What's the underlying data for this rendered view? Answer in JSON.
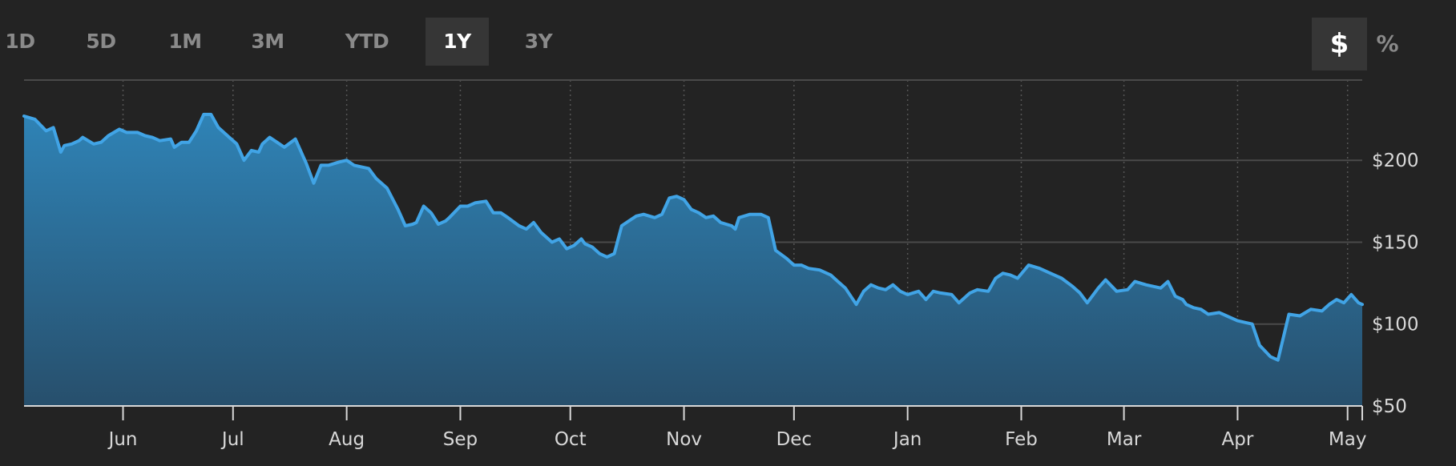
{
  "range_tabs": [
    {
      "label": "1D",
      "active": false
    },
    {
      "label": "5D",
      "active": false
    },
    {
      "label": "1M",
      "active": false
    },
    {
      "label": "3M",
      "active": false
    },
    {
      "label": "YTD",
      "active": false
    },
    {
      "label": "1Y",
      "active": true
    },
    {
      "label": "3Y",
      "active": false
    }
  ],
  "unit_toggle": {
    "dollar_label": "$",
    "percent_label": "%",
    "selected": "dollar"
  },
  "colors": {
    "background": "#232323",
    "line": "#41a4e6",
    "fill_top": "#2f83b6",
    "fill_bottom": "#274f6c",
    "grid": "#4a4a4a",
    "axis": "#d8d8d8"
  },
  "chart_data": {
    "type": "area",
    "title": "",
    "xlabel": "",
    "ylabel": "",
    "y_tick_labels": [
      "$50",
      "$100",
      "$150",
      "$200"
    ],
    "y_ticks": [
      50,
      100,
      150,
      200
    ],
    "ylim": [
      50,
      249
    ],
    "x_tick_labels": [
      {
        "label": "Jun",
        "date": "2022-06-01"
      },
      {
        "label": "Jul",
        "date": "2022-07-01"
      },
      {
        "label": "Aug",
        "date": "2022-08-01"
      },
      {
        "label": "Sep",
        "date": "2022-09-01"
      },
      {
        "label": "Oct",
        "date": "2022-10-01"
      },
      {
        "label": "Nov",
        "date": "2022-11-01"
      },
      {
        "label": "Dec",
        "date": "2022-12-01"
      },
      {
        "label": "Jan",
        "date": "2023-01-01"
      },
      {
        "label": "Feb",
        "date": "2023-02-01"
      },
      {
        "label": "Mar",
        "date": "2023-03-01"
      },
      {
        "label": "Apr",
        "date": "2023-04-01"
      },
      {
        "label": "May",
        "date": "2023-05-01"
      }
    ],
    "xlim": [
      "2022-05-05",
      "2023-05-05"
    ],
    "grid": true,
    "series": [
      {
        "x": [
          "2022-05-05",
          "2022-05-08",
          "2022-05-11",
          "2022-05-13",
          "2022-05-15",
          "2022-05-16",
          "2022-05-18",
          "2022-05-20",
          "2022-05-21",
          "2022-05-24",
          "2022-05-26",
          "2022-05-27",
          "2022-05-28",
          "2022-05-31",
          "2022-06-02",
          "2022-06-05",
          "2022-06-07",
          "2022-06-09",
          "2022-06-11",
          "2022-06-14",
          "2022-06-15",
          "2022-06-17",
          "2022-06-19",
          "2022-06-21",
          "2022-06-23",
          "2022-06-25",
          "2022-06-27",
          "2022-06-30",
          "2022-07-02",
          "2022-07-04",
          "2022-07-06",
          "2022-07-08",
          "2022-07-09",
          "2022-07-11",
          "2022-07-13",
          "2022-07-15",
          "2022-07-18",
          "2022-07-21",
          "2022-07-23",
          "2022-07-25",
          "2022-07-27",
          "2022-07-30",
          "2022-08-01",
          "2022-08-03",
          "2022-08-05",
          "2022-08-07",
          "2022-08-09",
          "2022-08-12",
          "2022-08-15",
          "2022-08-17",
          "2022-08-19",
          "2022-08-20",
          "2022-08-22",
          "2022-08-24",
          "2022-08-26",
          "2022-08-28",
          "2022-08-29",
          "2022-09-01",
          "2022-09-03",
          "2022-09-05",
          "2022-09-08",
          "2022-09-10",
          "2022-09-12",
          "2022-09-14",
          "2022-09-17",
          "2022-09-19",
          "2022-09-21",
          "2022-09-23",
          "2022-09-26",
          "2022-09-28",
          "2022-09-30",
          "2022-10-02",
          "2022-10-04",
          "2022-10-05",
          "2022-10-07",
          "2022-10-09",
          "2022-10-11",
          "2022-10-13",
          "2022-10-15",
          "2022-10-17",
          "2022-10-19",
          "2022-10-21",
          "2022-10-24",
          "2022-10-26",
          "2022-10-28",
          "2022-10-30",
          "2022-11-01",
          "2022-11-03",
          "2022-11-05",
          "2022-11-07",
          "2022-11-09",
          "2022-11-11",
          "2022-11-14",
          "2022-11-15",
          "2022-11-16",
          "2022-11-19",
          "2022-11-22",
          "2022-11-24",
          "2022-11-26",
          "2022-11-29",
          "2022-12-01",
          "2022-12-03",
          "2022-12-05",
          "2022-12-08",
          "2022-12-11",
          "2022-12-13",
          "2022-12-15",
          "2022-12-18",
          "2022-12-20",
          "2022-12-22",
          "2022-12-24",
          "2022-12-26",
          "2022-12-28",
          "2022-12-30",
          "2023-01-01",
          "2023-01-04",
          "2023-01-06",
          "2023-01-08",
          "2023-01-10",
          "2023-01-13",
          "2023-01-15",
          "2023-01-18",
          "2023-01-20",
          "2023-01-23",
          "2023-01-25",
          "2023-01-27",
          "2023-01-29",
          "2023-01-31",
          "2023-02-03",
          "2023-02-06",
          "2023-02-08",
          "2023-02-10",
          "2023-02-12",
          "2023-02-15",
          "2023-02-17",
          "2023-02-19",
          "2023-02-22",
          "2023-02-24",
          "2023-02-27",
          "2023-03-02",
          "2023-03-04",
          "2023-03-07",
          "2023-03-09",
          "2023-03-11",
          "2023-03-13",
          "2023-03-15",
          "2023-03-17",
          "2023-03-18",
          "2023-03-20",
          "2023-03-22",
          "2023-03-24",
          "2023-03-27",
          "2023-03-29",
          "2023-04-01",
          "2023-04-03",
          "2023-04-05",
          "2023-04-07",
          "2023-04-10",
          "2023-04-12",
          "2023-04-15",
          "2023-04-18",
          "2023-04-21",
          "2023-04-24",
          "2023-04-26",
          "2023-04-28",
          "2023-04-30",
          "2023-05-02",
          "2023-05-04",
          "2023-05-05"
        ],
        "y": [
          227,
          225,
          218,
          220,
          205,
          209,
          210,
          212,
          214,
          210,
          211,
          213,
          215,
          219,
          217,
          217,
          215,
          214,
          212,
          213,
          208,
          211,
          211,
          218,
          228,
          228,
          220,
          214,
          210,
          200,
          206,
          205,
          210,
          214,
          211,
          208,
          213,
          198,
          186,
          197,
          197,
          199,
          200,
          197,
          196,
          195,
          189,
          183,
          170,
          160,
          161,
          162,
          172,
          168,
          161,
          163,
          165,
          172,
          172,
          174,
          175,
          168,
          168,
          165,
          160,
          158,
          162,
          156,
          150,
          152,
          146,
          148,
          152,
          149,
          147,
          143,
          141,
          143,
          160,
          163,
          166,
          167,
          165,
          167,
          177,
          178,
          176,
          170,
          168,
          165,
          166,
          162,
          160,
          158,
          165,
          167,
          167,
          165,
          145,
          140,
          136,
          136,
          134,
          133,
          130,
          126,
          122,
          112,
          120,
          124,
          122,
          121,
          124,
          120,
          118,
          120,
          115,
          120,
          119,
          118,
          113,
          119,
          121,
          120,
          128,
          131,
          130,
          128,
          136,
          134,
          132,
          130,
          128,
          123,
          119,
          113,
          122,
          127,
          120,
          121,
          126,
          124,
          123,
          122,
          126,
          117,
          115,
          112,
          110,
          109,
          106,
          107,
          105,
          102,
          101,
          100,
          87,
          80,
          78,
          106,
          105,
          109,
          108,
          112,
          115,
          113,
          118,
          113,
          112
        ]
      }
    ]
  }
}
